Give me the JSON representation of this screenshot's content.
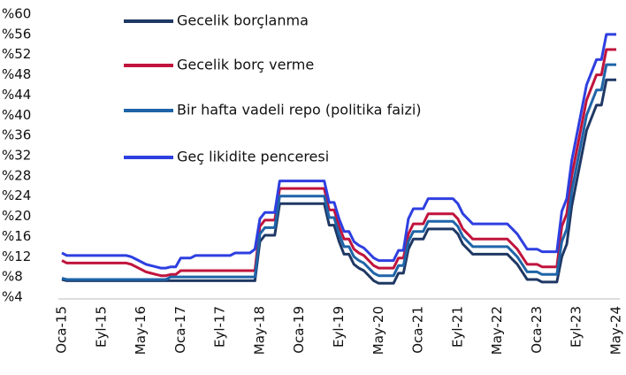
{
  "chart_data": {
    "type": "line",
    "categories": [
      "Oca-15",
      null,
      null,
      null,
      null,
      null,
      null,
      null,
      "Eyl-15",
      null,
      null,
      null,
      null,
      null,
      null,
      null,
      "May-16",
      null,
      null,
      null,
      null,
      null,
      null,
      null,
      "Oca-17",
      null,
      null,
      null,
      null,
      null,
      null,
      null,
      "Eyl-17",
      null,
      null,
      null,
      null,
      null,
      null,
      null,
      "May-18",
      null,
      null,
      null,
      null,
      null,
      null,
      null,
      "Oca-19",
      null,
      null,
      null,
      null,
      null,
      null,
      null,
      "Eyl-19",
      null,
      null,
      null,
      null,
      null,
      null,
      null,
      "May-20",
      null,
      null,
      null,
      null,
      null,
      null,
      null,
      "Oca-21",
      null,
      null,
      null,
      null,
      null,
      null,
      null,
      "Eyl-21",
      null,
      null,
      null,
      null,
      null,
      null,
      null,
      "May-22",
      null,
      null,
      null,
      null,
      null,
      null,
      null,
      "Oca-23",
      null,
      null,
      null,
      null,
      null,
      null,
      null,
      "Eyl-23",
      null,
      null,
      null,
      null,
      null,
      null,
      null,
      "May-24"
    ],
    "series": [
      {
        "name": "Gecelik borçlanma",
        "color": "#1f3864",
        "values": [
          7.5,
          7.25,
          7.25,
          7.25,
          7.25,
          7.25,
          7.25,
          7.25,
          7.25,
          7.25,
          7.25,
          7.25,
          7.25,
          7.25,
          7.25,
          7.25,
          7.25,
          7.25,
          7.25,
          7.25,
          7.25,
          7.25,
          7.25,
          7.25,
          7.25,
          7.25,
          7.25,
          7.25,
          7.25,
          7.25,
          7.25,
          7.25,
          7.25,
          7.25,
          7.25,
          7.25,
          7.25,
          7.25,
          7.25,
          7.25,
          15,
          16.25,
          16.25,
          16.25,
          22.5,
          22.5,
          22.5,
          22.5,
          22.5,
          22.5,
          22.5,
          22.5,
          22.5,
          22.5,
          18.25,
          18.25,
          15,
          12.5,
          12.5,
          10.5,
          9.75,
          9.25,
          8.25,
          7.25,
          6.75,
          6.75,
          6.75,
          6.75,
          8.75,
          8.75,
          13.5,
          15.5,
          15.5,
          15.5,
          17.5,
          17.5,
          17.5,
          17.5,
          17.5,
          17.5,
          16.5,
          14.5,
          13.5,
          12.5,
          12.5,
          12.5,
          12.5,
          12.5,
          12.5,
          12.5,
          12.5,
          11.5,
          10.5,
          9,
          7.5,
          7.5,
          7.5,
          7,
          7,
          7,
          7,
          12,
          14.5,
          22,
          27,
          32,
          37,
          39.5,
          42,
          42,
          47,
          47,
          47
        ]
      },
      {
        "name": "Gecelik borç verme",
        "color": "#c0143c",
        "values": [
          11.25,
          10.75,
          10.75,
          10.75,
          10.75,
          10.75,
          10.75,
          10.75,
          10.75,
          10.75,
          10.75,
          10.75,
          10.75,
          10.75,
          10.5,
          10,
          9.5,
          9,
          8.75,
          8.5,
          8.25,
          8.25,
          8.5,
          8.5,
          9.25,
          9.25,
          9.25,
          9.25,
          9.25,
          9.25,
          9.25,
          9.25,
          9.25,
          9.25,
          9.25,
          9.25,
          9.25,
          9.25,
          9.25,
          9.25,
          18,
          19.25,
          19.25,
          19.25,
          25.5,
          25.5,
          25.5,
          25.5,
          25.5,
          25.5,
          25.5,
          25.5,
          25.5,
          25.5,
          21.25,
          21.25,
          18,
          15.5,
          15.5,
          13.5,
          12.75,
          12.25,
          11.25,
          10.25,
          9.75,
          9.75,
          9.75,
          9.75,
          11.75,
          11.75,
          16.5,
          18.5,
          18.5,
          18.5,
          20.5,
          20.5,
          20.5,
          20.5,
          20.5,
          20.5,
          19.5,
          17.5,
          16.5,
          15.5,
          15.5,
          15.5,
          15.5,
          15.5,
          15.5,
          15.5,
          15.5,
          14.5,
          13.5,
          12,
          10.5,
          10.5,
          10.5,
          10,
          10,
          10,
          10,
          18,
          20.5,
          28,
          33,
          38,
          43,
          45.5,
          48,
          48,
          53,
          53,
          53
        ]
      },
      {
        "name": "Bir hafta vadeli repo (politika faizi)",
        "color": "#1f64a8",
        "values": [
          7.75,
          7.5,
          7.5,
          7.5,
          7.5,
          7.5,
          7.5,
          7.5,
          7.5,
          7.5,
          7.5,
          7.5,
          7.5,
          7.5,
          7.5,
          7.5,
          7.5,
          7.5,
          7.5,
          7.5,
          7.5,
          7.5,
          8,
          8,
          8,
          8,
          8,
          8,
          8,
          8,
          8,
          8,
          8,
          8,
          8,
          8,
          8,
          8,
          8,
          8,
          16.5,
          17.75,
          17.75,
          17.75,
          24,
          24,
          24,
          24,
          24,
          24,
          24,
          24,
          24,
          24,
          19.75,
          19.75,
          16.5,
          14,
          14,
          12,
          11.25,
          10.75,
          9.75,
          8.75,
          8.25,
          8.25,
          8.25,
          8.25,
          10.25,
          10.25,
          15,
          17,
          17,
          17,
          19,
          19,
          19,
          19,
          19,
          19,
          18,
          16,
          15,
          14,
          14,
          14,
          14,
          14,
          14,
          14,
          14,
          13,
          12,
          10.5,
          9,
          9,
          9,
          8.5,
          8.5,
          8.5,
          8.5,
          15,
          17.5,
          25,
          30,
          35,
          40,
          42.5,
          45,
          45,
          50,
          50,
          50
        ]
      },
      {
        "name": "Geç likidite penceresi",
        "color": "#2e3fe0",
        "values": [
          12.75,
          12.25,
          12.25,
          12.25,
          12.25,
          12.25,
          12.25,
          12.25,
          12.25,
          12.25,
          12.25,
          12.25,
          12.25,
          12.25,
          12,
          11.5,
          11,
          10.5,
          10.25,
          10,
          9.75,
          9.75,
          10,
          10,
          11.75,
          11.75,
          11.75,
          12.25,
          12.25,
          12.25,
          12.25,
          12.25,
          12.25,
          12.25,
          12.25,
          12.75,
          12.75,
          12.75,
          12.75,
          13.5,
          19.5,
          20.75,
          20.75,
          20.75,
          27,
          27,
          27,
          27,
          27,
          27,
          27,
          27,
          27,
          27,
          22.75,
          22.75,
          19.5,
          17,
          17,
          15,
          14.25,
          13.75,
          12.75,
          11.75,
          11.25,
          11.25,
          11.25,
          11.25,
          13.25,
          13.25,
          19.5,
          21.5,
          21.5,
          21.5,
          23.5,
          23.5,
          23.5,
          23.5,
          23.5,
          23.5,
          22.5,
          20.5,
          19.5,
          18.5,
          18.5,
          18.5,
          18.5,
          18.5,
          18.5,
          18.5,
          18.5,
          17.5,
          16.5,
          15,
          13.5,
          13.5,
          13.5,
          13,
          13,
          13,
          13,
          21,
          23.5,
          31,
          36,
          41,
          46,
          48.5,
          51,
          51,
          56,
          56,
          56
        ]
      }
    ],
    "ylim": [
      4,
      60
    ],
    "yticks": [
      {
        "value": 4,
        "label": "%4"
      },
      {
        "value": 8,
        "label": "%8"
      },
      {
        "value": 12,
        "label": "%12"
      },
      {
        "value": 16,
        "label": "%16"
      },
      {
        "value": 20,
        "label": "%20"
      },
      {
        "value": 24,
        "label": "%24"
      },
      {
        "value": 28,
        "label": "%28"
      },
      {
        "value": 32,
        "label": "%32"
      },
      {
        "value": 36,
        "label": "%36"
      },
      {
        "value": 40,
        "label": "%40"
      },
      {
        "value": 44,
        "label": "%44"
      },
      {
        "value": 48,
        "label": "%48"
      },
      {
        "value": 52,
        "label": "%52"
      },
      {
        "value": 56,
        "label": "%56"
      },
      {
        "value": 60,
        "label": "%60"
      }
    ],
    "grid": false
  }
}
